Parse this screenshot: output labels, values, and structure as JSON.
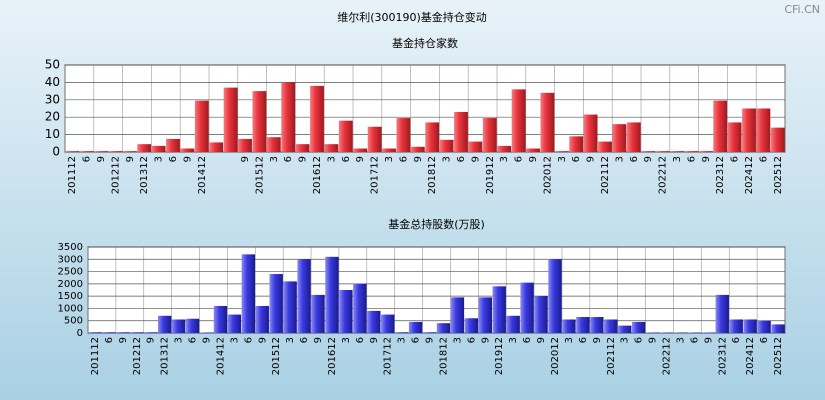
{
  "title": "维尔利(300190)基金持仓变动",
  "watermark": "CFi.CN",
  "chart_data": [
    {
      "type": "bar",
      "title": "基金持仓家数",
      "color": "#e8343c",
      "categories": [
        "201112",
        "6",
        "9",
        "201212",
        "9",
        "201312",
        "3",
        "6",
        "9",
        "201412",
        null,
        null,
        "9",
        "201512",
        "3",
        "6",
        "9",
        "201612",
        "3",
        "6",
        "9",
        "201712",
        "3",
        "6",
        "9",
        "201812",
        "3",
        "6",
        "9",
        "201912",
        "3",
        "6",
        "9",
        "202012",
        "3",
        "6",
        "9",
        "202112",
        "3",
        "6",
        "9",
        "202212",
        "3",
        "6",
        "9",
        "202312",
        "6",
        "202412",
        "6",
        "202512"
      ],
      "values": [
        0.5,
        0.5,
        0.5,
        0.5,
        0.5,
        4.5,
        3.5,
        7.5,
        2,
        29.5,
        5.5,
        37,
        7.5,
        35,
        8.5,
        40,
        4.5,
        38,
        4.5,
        18,
        2,
        14.5,
        2,
        19.5,
        3,
        17,
        7,
        23,
        6,
        19.5,
        3.5,
        36,
        2,
        34,
        0.5,
        9,
        21.5,
        6,
        16,
        17,
        0.5,
        0.5,
        0.5,
        0.5,
        0.5,
        29.5,
        17,
        25,
        25,
        14
      ],
      "ylim": [
        0,
        50
      ],
      "yticks": [
        0,
        10,
        20,
        30,
        40,
        50
      ]
    },
    {
      "type": "bar",
      "title": "基金总持股数(万股)",
      "color": "#3a3ae0",
      "categories": [
        "201112",
        "6",
        "9",
        "201212",
        "9",
        "201312",
        "3",
        "6",
        "9",
        "201412",
        "3",
        "6",
        "9",
        "201512",
        "3",
        "6",
        "9",
        "201612",
        "3",
        "6",
        "9",
        "201712",
        "3",
        "6",
        "9",
        "201812",
        "3",
        "6",
        "9",
        "201912",
        "3",
        "6",
        "9",
        "202012",
        "3",
        "6",
        "9",
        "202112",
        "3",
        "6",
        "9",
        "202212",
        "3",
        "6",
        "9",
        "202312",
        "6",
        "202412",
        "6",
        "202512"
      ],
      "values": [
        30,
        30,
        30,
        30,
        30,
        700,
        550,
        580,
        20,
        1100,
        750,
        3200,
        1100,
        2400,
        2100,
        3000,
        1550,
        3100,
        1750,
        2000,
        900,
        750,
        30,
        450,
        30,
        400,
        1450,
        600,
        1450,
        1900,
        700,
        2050,
        1500,
        3000,
        550,
        650,
        650,
        550,
        300,
        450,
        20,
        20,
        20,
        20,
        20,
        1550,
        550,
        550,
        500,
        350
      ],
      "ylim": [
        0,
        3500
      ],
      "yticks": [
        0,
        500,
        1000,
        1500,
        2000,
        2500,
        3000,
        3500
      ]
    }
  ]
}
